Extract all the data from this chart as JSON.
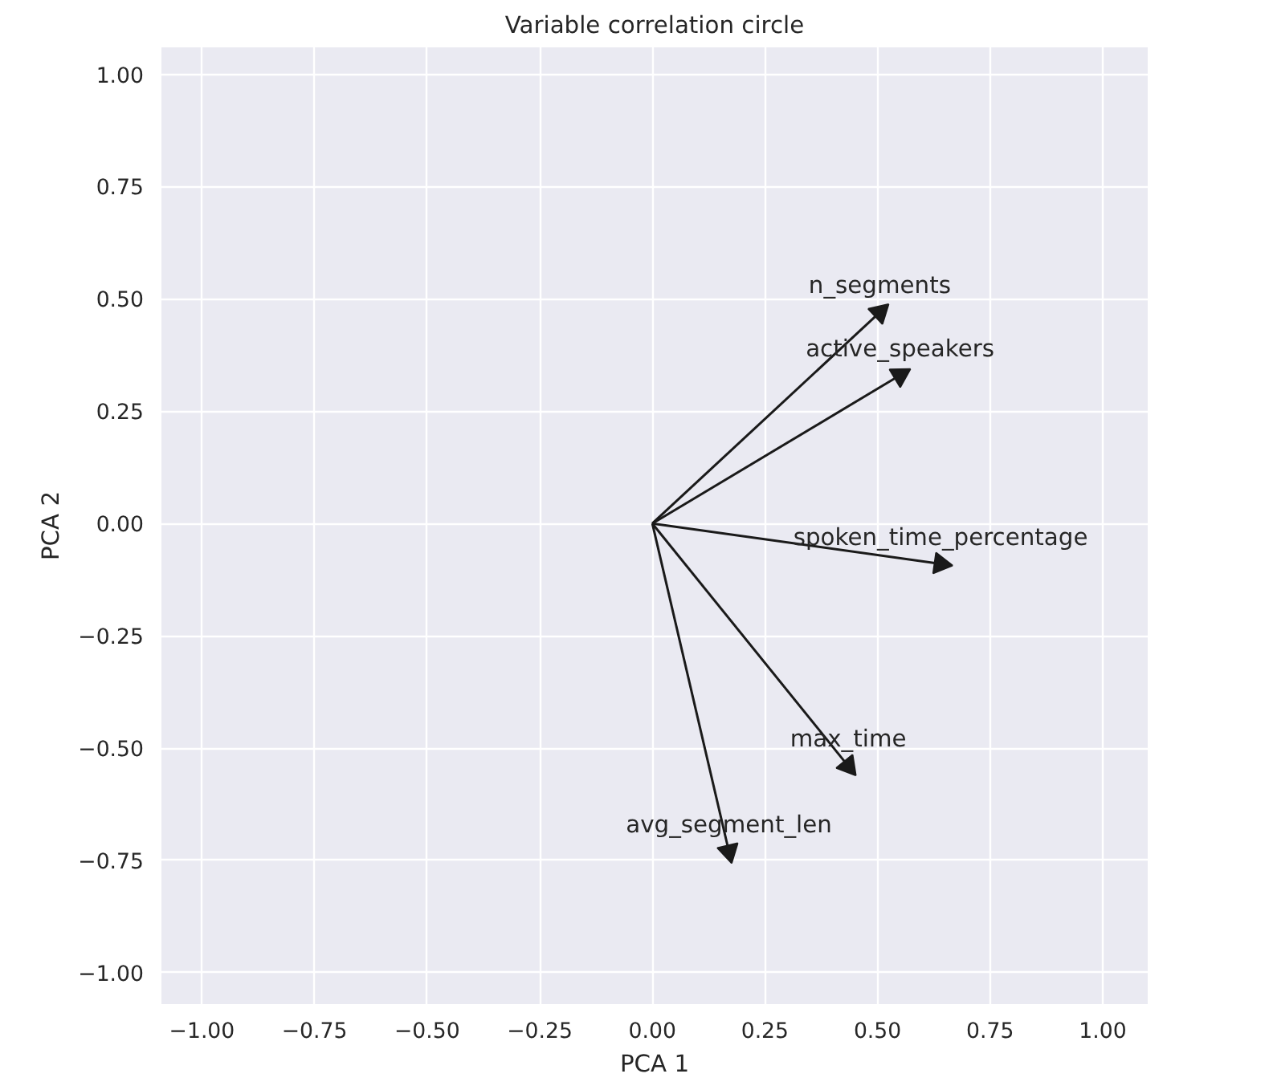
{
  "chart_data": {
    "type": "scatter",
    "title": "Variable correlation circle",
    "xlabel": "PCA 1",
    "ylabel": "PCA 2",
    "xlim": [
      -1.09,
      1.1
    ],
    "ylim": [
      -1.07,
      1.06
    ],
    "xticks": [
      {
        "value": -1,
        "label": "−1.00"
      },
      {
        "value": -0.75,
        "label": "−0.75"
      },
      {
        "value": -0.5,
        "label": "−0.50"
      },
      {
        "value": -0.25,
        "label": "−0.25"
      },
      {
        "value": 0,
        "label": "0.00"
      },
      {
        "value": 0.25,
        "label": "0.25"
      },
      {
        "value": 0.5,
        "label": "0.50"
      },
      {
        "value": 0.75,
        "label": "0.75"
      },
      {
        "value": 1,
        "label": "1.00"
      }
    ],
    "yticks": [
      {
        "value": -1,
        "label": "−1.00"
      },
      {
        "value": -0.75,
        "label": "−0.75"
      },
      {
        "value": -0.5,
        "label": "−0.50"
      },
      {
        "value": -0.25,
        "label": "−0.25"
      },
      {
        "value": 0,
        "label": "0.00"
      },
      {
        "value": 0.25,
        "label": "0.25"
      },
      {
        "value": 0.5,
        "label": "0.50"
      },
      {
        "value": 0.75,
        "label": "0.75"
      },
      {
        "value": 1,
        "label": "1.00"
      }
    ],
    "grid": true,
    "marker": "triangle",
    "series": [
      {
        "name": "n_segments",
        "color": "#1a1a1a",
        "x": [
          0.505
        ],
        "values": [
          0.47
        ]
      },
      {
        "name": "active_speakers",
        "color": "#1a1a1a",
        "x": [
          0.55
        ],
        "values": [
          0.33
        ]
      },
      {
        "name": "spoken_time_percentage",
        "color": "#1a1a1a",
        "x": [
          0.64
        ],
        "values": [
          -0.09
        ]
      },
      {
        "name": "max_time",
        "color": "#1a1a1a",
        "x": [
          0.435
        ],
        "values": [
          -0.54
        ]
      },
      {
        "name": "avg_segment_len",
        "color": "#1a1a1a",
        "x": [
          0.17
        ],
        "values": [
          -0.73
        ]
      }
    ]
  }
}
